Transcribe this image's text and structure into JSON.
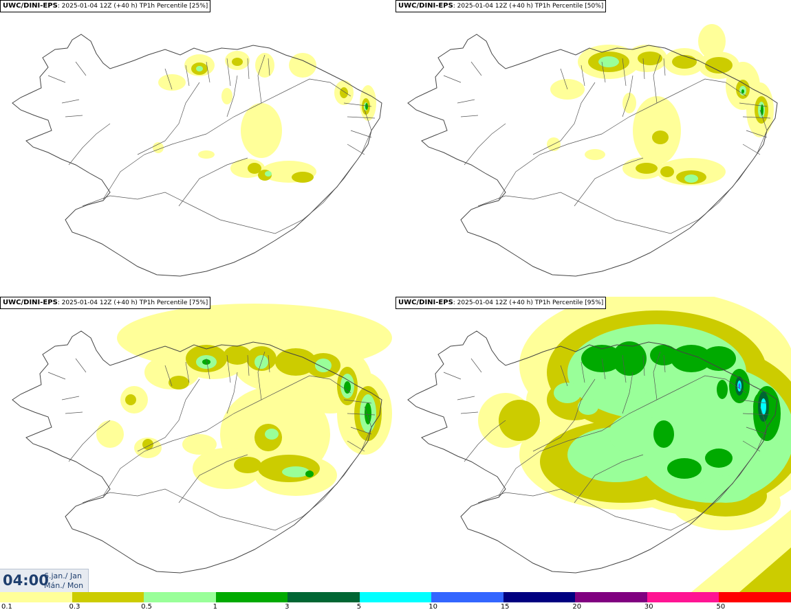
{
  "panels": [
    {
      "model": "UWC/DINI-EPS",
      "run": "2025-01-04 12Z (+40 h)",
      "label": "TP1h Percentile [25%]"
    },
    {
      "model": "UWC/DINI-EPS",
      "run": "2025-01-04 12Z (+40 h)",
      "label": "TP1h Percentile [50%]"
    },
    {
      "model": "UWC/DINI-EPS",
      "run": "2025-01-04 12Z (+40 h)",
      "label": "TP1h Percentile [75%]"
    },
    {
      "model": "UWC/DINI-EPS",
      "run": "2025-01-04 12Z (+40 h)",
      "label": "TP1h Percentile [95%]"
    }
  ],
  "valid_time": {
    "time": "04:00",
    "date_line1": "6.jan./ Jan",
    "date_line2": "Mán./ Mon"
  },
  "legend": {
    "colors": [
      "#ffff99",
      "#cccc00",
      "#99ff99",
      "#00aa00",
      "#006633",
      "#00ffff",
      "#3366ff",
      "#000080",
      "#800080",
      "#ff1493",
      "#ff0000"
    ],
    "ticks": [
      "0.1",
      "0.3",
      "0.5",
      "1",
      "3",
      "5",
      "10",
      "15",
      "20",
      "30",
      "50"
    ]
  }
}
